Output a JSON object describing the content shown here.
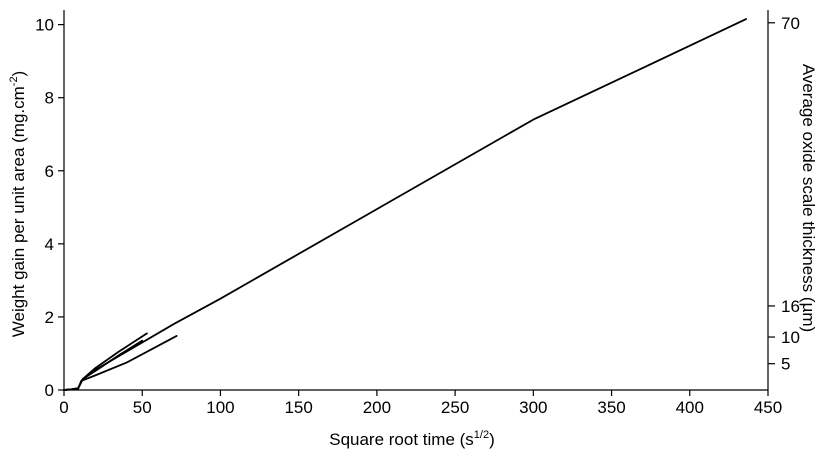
{
  "chart_data": {
    "type": "line",
    "xlabel": {
      "main": "Square root time (s",
      "sup": "1/2",
      "end": ")"
    },
    "ylabel": {
      "main": "Weight gain per unit area (mg.cm",
      "sup": "-2",
      "end": ")"
    },
    "y2label": "Average oxide scale thickness (µm)",
    "xlim": [
      0,
      450
    ],
    "ylim": [
      0,
      10.4
    ],
    "x_ticks": [
      0,
      50,
      100,
      150,
      200,
      250,
      300,
      350,
      400,
      450
    ],
    "x_tick_labels": [
      "0",
      "50",
      "100",
      "150",
      "200",
      "250",
      "300",
      "350",
      "400",
      "450"
    ],
    "y_ticks": [
      0,
      2,
      4,
      6,
      8,
      10
    ],
    "y_tick_labels": [
      "0",
      "2",
      "4",
      "6",
      "8",
      "10"
    ],
    "y2_ticks": [
      {
        "label": "5",
        "y": 0.72
      },
      {
        "label": "10",
        "y": 1.45
      },
      {
        "label": "16",
        "y": 2.3
      },
      {
        "label": "70",
        "y": 10.05
      }
    ],
    "series": [
      {
        "x": [
          0,
          5,
          9,
          12,
          20,
          40,
          70,
          100,
          200,
          300,
          436
        ],
        "y": [
          0,
          0.02,
          0.05,
          0.3,
          0.55,
          1.05,
          1.8,
          2.5,
          4.95,
          7.4,
          10.15
        ]
      },
      {
        "x": [
          0,
          5,
          9,
          12,
          20,
          35,
          53
        ],
        "y": [
          0,
          0.02,
          0.05,
          0.3,
          0.6,
          1.05,
          1.55
        ]
      },
      {
        "x": [
          0,
          5,
          9,
          12,
          20,
          35,
          50
        ],
        "y": [
          0,
          0.02,
          0.04,
          0.3,
          0.52,
          0.95,
          1.35
        ]
      },
      {
        "x": [
          0,
          5,
          9,
          11,
          20,
          40,
          72
        ],
        "y": [
          0,
          0.02,
          0.03,
          0.25,
          0.4,
          0.75,
          1.48
        ]
      }
    ]
  }
}
